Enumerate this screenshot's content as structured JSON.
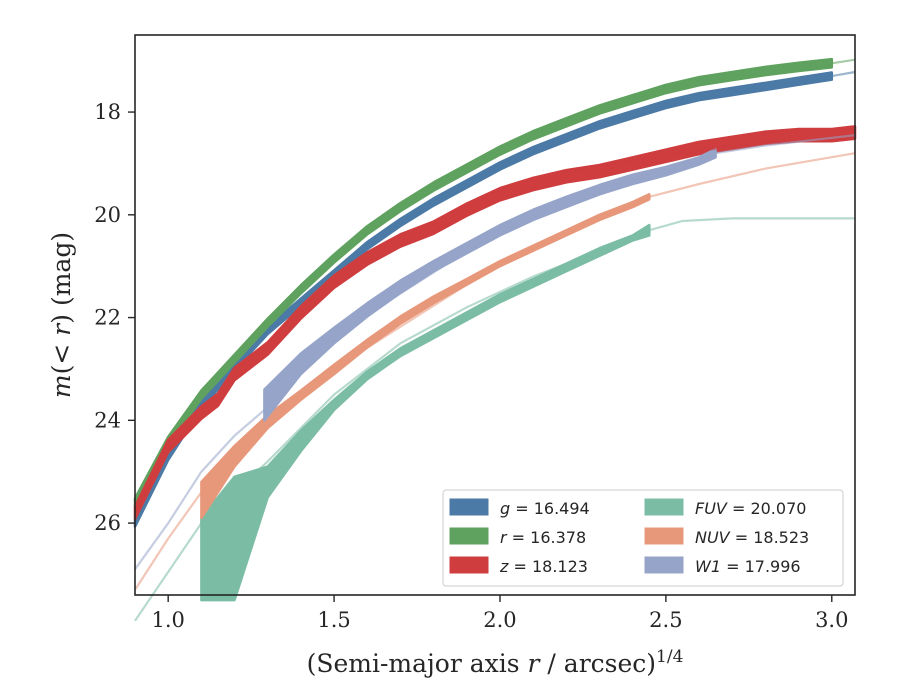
{
  "chart_data": {
    "type": "line",
    "xlabel": "(Semi-major axis r / arcsec)^1/4",
    "ylabel": "m(< r) (mag)",
    "xlim": [
      0.9,
      3.07
    ],
    "ylim": [
      27.4,
      16.5
    ],
    "y_inverted": true,
    "x_ticks": [
      "1.0",
      "1.5",
      "2.0",
      "2.5",
      "3.0"
    ],
    "y_ticks": [
      "18",
      "20",
      "22",
      "24",
      "26"
    ],
    "grid": false,
    "legend_position": "bottom-right",
    "legend_columns": 2,
    "series": [
      {
        "name": "g = 16.494",
        "legend_var": "g",
        "legend_value": "16.494",
        "color": "#4c7aa6",
        "data": [
          [
            0.9,
            26.0
          ],
          [
            1.0,
            24.7
          ],
          [
            1.1,
            23.7
          ],
          [
            1.2,
            22.95
          ],
          [
            1.3,
            22.25
          ],
          [
            1.4,
            21.7
          ],
          [
            1.5,
            21.15
          ],
          [
            1.6,
            20.6
          ],
          [
            1.7,
            20.15
          ],
          [
            1.8,
            19.75
          ],
          [
            1.9,
            19.4
          ],
          [
            2.0,
            19.05
          ],
          [
            2.1,
            18.75
          ],
          [
            2.2,
            18.5
          ],
          [
            2.3,
            18.25
          ],
          [
            2.4,
            18.05
          ],
          [
            2.5,
            17.85
          ],
          [
            2.6,
            17.7
          ],
          [
            2.7,
            17.6
          ],
          [
            2.8,
            17.5
          ],
          [
            2.9,
            17.4
          ],
          [
            3.0,
            17.3
          ]
        ],
        "band": [
          0.07,
          0.07
        ],
        "model": [
          [
            3.0,
            17.3
          ],
          [
            3.07,
            17.22
          ]
        ]
      },
      {
        "name": "r = 16.378",
        "legend_var": "r",
        "legend_value": "16.378",
        "color": "#5fa25f",
        "data": [
          [
            0.9,
            25.6
          ],
          [
            1.0,
            24.4
          ],
          [
            1.1,
            23.5
          ],
          [
            1.2,
            22.8
          ],
          [
            1.3,
            22.1
          ],
          [
            1.4,
            21.45
          ],
          [
            1.5,
            20.85
          ],
          [
            1.6,
            20.3
          ],
          [
            1.7,
            19.85
          ],
          [
            1.8,
            19.45
          ],
          [
            1.9,
            19.1
          ],
          [
            2.0,
            18.75
          ],
          [
            2.1,
            18.45
          ],
          [
            2.2,
            18.2
          ],
          [
            2.3,
            17.95
          ],
          [
            2.4,
            17.75
          ],
          [
            2.5,
            17.55
          ],
          [
            2.6,
            17.4
          ],
          [
            2.7,
            17.3
          ],
          [
            2.8,
            17.2
          ],
          [
            2.9,
            17.12
          ],
          [
            3.0,
            17.05
          ]
        ],
        "band": [
          0.08,
          0.08
        ],
        "model": [
          [
            3.0,
            17.05
          ],
          [
            3.07,
            16.98
          ]
        ]
      },
      {
        "name": "z = 18.123",
        "legend_var": "z",
        "legend_value": "18.123",
        "color": "#cf3d3f",
        "data": [
          [
            0.9,
            25.8
          ],
          [
            1.0,
            24.5
          ],
          [
            1.1,
            23.85
          ],
          [
            1.15,
            23.6
          ],
          [
            1.2,
            23.1
          ],
          [
            1.3,
            22.6
          ],
          [
            1.4,
            21.9
          ],
          [
            1.5,
            21.3
          ],
          [
            1.6,
            20.85
          ],
          [
            1.7,
            20.5
          ],
          [
            1.8,
            20.25
          ],
          [
            1.9,
            19.9
          ],
          [
            2.0,
            19.6
          ],
          [
            2.1,
            19.4
          ],
          [
            2.2,
            19.25
          ],
          [
            2.3,
            19.15
          ],
          [
            2.4,
            19.0
          ],
          [
            2.5,
            18.85
          ],
          [
            2.6,
            18.7
          ],
          [
            2.7,
            18.6
          ],
          [
            2.8,
            18.5
          ],
          [
            2.9,
            18.45
          ],
          [
            3.0,
            18.45
          ],
          [
            3.07,
            18.4
          ]
        ],
        "band": [
          0.12,
          0.12
        ],
        "model": [
          [
            2.2,
            19.15
          ],
          [
            2.4,
            18.95
          ],
          [
            2.6,
            18.75
          ],
          [
            2.8,
            18.6
          ],
          [
            3.07,
            18.5
          ]
        ]
      },
      {
        "name": "FUV = 20.070",
        "legend_var": "FUV",
        "legend_value": "20.070",
        "color": "#7bbca5",
        "data": [
          [
            1.1,
            26.4
          ],
          [
            1.2,
            25.7
          ],
          [
            1.3,
            25.1
          ],
          [
            1.4,
            24.35
          ],
          [
            1.5,
            23.7
          ],
          [
            1.6,
            23.1
          ],
          [
            1.7,
            22.65
          ],
          [
            1.8,
            22.3
          ],
          [
            1.9,
            21.95
          ],
          [
            2.0,
            21.6
          ],
          [
            2.1,
            21.3
          ],
          [
            2.2,
            21.0
          ],
          [
            2.3,
            20.7
          ],
          [
            2.4,
            20.45
          ],
          [
            2.45,
            20.3
          ]
        ],
        "band_upper": [
          25.9,
          25.1,
          24.9,
          24.2,
          23.6,
          23.05,
          22.6,
          22.25,
          21.9,
          21.55,
          21.25,
          20.95,
          20.65,
          20.4,
          20.2
        ],
        "band_lower": [
          27.5,
          27.5,
          25.5,
          24.6,
          23.8,
          23.2,
          22.75,
          22.4,
          22.05,
          21.7,
          21.4,
          21.1,
          20.8,
          20.5,
          20.4
        ],
        "model": [
          [
            0.9,
            27.9
          ],
          [
            1.1,
            26.0
          ],
          [
            1.3,
            24.8
          ],
          [
            1.5,
            23.5
          ],
          [
            1.7,
            22.5
          ],
          [
            1.9,
            21.8
          ],
          [
            2.1,
            21.2
          ],
          [
            2.3,
            20.7
          ],
          [
            2.45,
            20.3
          ],
          [
            2.55,
            20.12
          ],
          [
            2.7,
            20.07
          ],
          [
            3.07,
            20.07
          ]
        ]
      },
      {
        "name": "NUV = 18.523",
        "legend_var": "NUV",
        "legend_value": "18.523",
        "color": "#e8987a",
        "data": [
          [
            1.1,
            25.3
          ],
          [
            1.2,
            24.65
          ],
          [
            1.3,
            24.0
          ],
          [
            1.4,
            23.5
          ],
          [
            1.5,
            23.0
          ],
          [
            1.6,
            22.5
          ],
          [
            1.7,
            22.05
          ],
          [
            1.8,
            21.65
          ],
          [
            1.9,
            21.3
          ],
          [
            2.0,
            20.95
          ],
          [
            2.1,
            20.65
          ],
          [
            2.2,
            20.35
          ],
          [
            2.3,
            20.05
          ],
          [
            2.4,
            19.8
          ],
          [
            2.45,
            19.65
          ]
        ],
        "band_upper": [
          25.2,
          24.5,
          23.9,
          23.42,
          22.92,
          22.43,
          21.98,
          21.59,
          21.25,
          20.9,
          20.6,
          20.3,
          20.0,
          19.75,
          19.6
        ],
        "band_lower": [
          25.9,
          24.9,
          24.15,
          23.6,
          23.1,
          22.58,
          22.12,
          21.72,
          21.36,
          21.0,
          20.7,
          20.4,
          20.1,
          19.85,
          19.7
        ],
        "model": [
          [
            0.9,
            27.3
          ],
          [
            1.0,
            26.3
          ],
          [
            1.1,
            25.4
          ],
          [
            1.3,
            24.1
          ],
          [
            1.5,
            23.0
          ],
          [
            2.0,
            20.95
          ],
          [
            2.45,
            19.65
          ],
          [
            2.6,
            19.4
          ],
          [
            2.8,
            19.1
          ],
          [
            3.07,
            18.8
          ]
        ]
      },
      {
        "name": "W1 = 17.996",
        "legend_var": "W1",
        "legend_value": "17.996",
        "color": "#95a4c8",
        "data": [
          [
            1.29,
            23.8
          ],
          [
            1.4,
            22.9
          ],
          [
            1.5,
            22.35
          ],
          [
            1.6,
            21.85
          ],
          [
            1.7,
            21.4
          ],
          [
            1.8,
            21.0
          ],
          [
            1.9,
            20.65
          ],
          [
            2.0,
            20.3
          ],
          [
            2.1,
            20.0
          ],
          [
            2.2,
            19.75
          ],
          [
            2.3,
            19.5
          ],
          [
            2.4,
            19.3
          ],
          [
            2.5,
            19.15
          ],
          [
            2.6,
            18.95
          ],
          [
            2.65,
            18.8
          ]
        ],
        "band_upper": [
          23.4,
          22.7,
          22.2,
          21.72,
          21.28,
          20.9,
          20.55,
          20.2,
          19.9,
          19.65,
          19.42,
          19.22,
          19.07,
          18.88,
          18.72
        ],
        "band_lower": [
          24.0,
          23.1,
          22.5,
          21.98,
          21.52,
          21.1,
          20.75,
          20.4,
          20.1,
          19.85,
          19.6,
          19.4,
          19.23,
          19.02,
          18.88
        ],
        "model": [
          [
            0.9,
            26.9
          ],
          [
            1.0,
            26.0
          ],
          [
            1.1,
            25.0
          ],
          [
            1.2,
            24.3
          ],
          [
            1.29,
            23.8
          ],
          [
            1.5,
            22.35
          ],
          [
            2.0,
            20.3
          ],
          [
            2.65,
            18.8
          ],
          [
            2.8,
            18.65
          ],
          [
            3.07,
            18.45
          ]
        ]
      }
    ]
  }
}
